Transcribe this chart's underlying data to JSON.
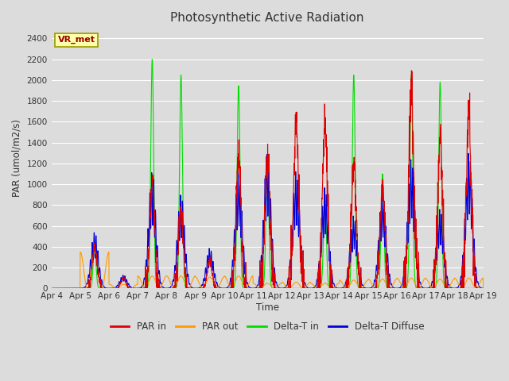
{
  "title": "Photosynthetic Active Radiation",
  "ylabel": "PAR (umol/m2/s)",
  "xlabel": "Time",
  "xlim": [
    0,
    15
  ],
  "ylim": [
    0,
    2500
  ],
  "yticks": [
    0,
    200,
    400,
    600,
    800,
    1000,
    1200,
    1400,
    1600,
    1800,
    2000,
    2200,
    2400
  ],
  "xtick_labels": [
    "Apr 4",
    "Apr 5",
    "Apr 6",
    "Apr 7",
    "Apr 8",
    "Apr 9",
    "Apr 10",
    "Apr 11",
    "Apr 12",
    "Apr 13",
    "Apr 14",
    "Apr 15",
    "Apr 16",
    "Apr 17",
    "Apr 18",
    "Apr 19"
  ],
  "bg_color": "#dcdcdc",
  "plot_bg": "#dcdcdc",
  "legend_items": [
    "PAR in",
    "PAR out",
    "Delta-T in",
    "Delta-T Diffuse"
  ],
  "legend_colors": [
    "#dd0000",
    "#ff9900",
    "#00dd00",
    "#0000dd"
  ],
  "annotation_text": "VR_met",
  "annotation_bg": "#ffffaa",
  "annotation_border": "#999900",
  "annotation_text_color": "#990000",
  "title_color": "#333333",
  "axis_label_color": "#333333",
  "tick_label_color": "#333333",
  "grid_color": "#ffffff",
  "line_width": 0.8
}
